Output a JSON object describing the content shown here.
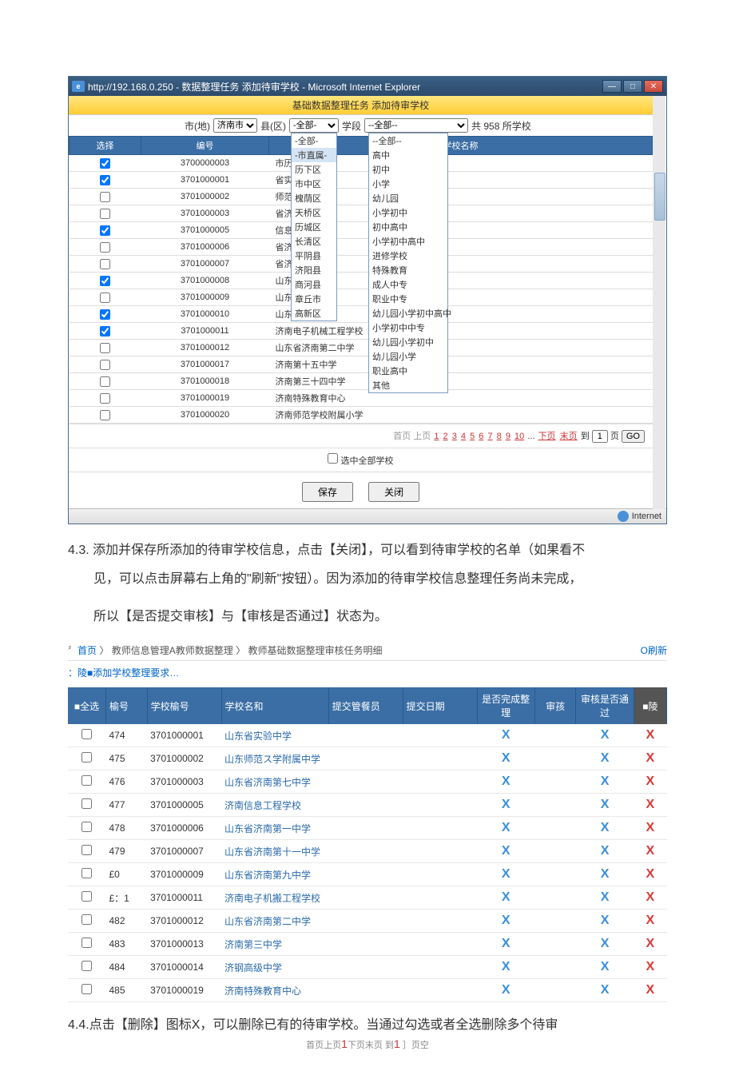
{
  "dialog": {
    "title": "http://192.168.0.250 - 数据整理任务 添加待审学校 - Microsoft Internet Explorer",
    "header": "基础数据整理任务 添加待审学校",
    "filter": {
      "city_label": "市(地)",
      "city_value": "济南市",
      "district_label": "县(区)",
      "district_value": "-全部-",
      "stage_label": "学段",
      "stage_value": "--全部--",
      "count_label": "共 958 所学校"
    },
    "district_options": [
      "-全部-",
      "-市直属-",
      "历下区",
      "市中区",
      "槐荫区",
      "天桥区",
      "历城区",
      "长清区",
      "平阴县",
      "济阳县",
      "商河县",
      "章丘市",
      "高新区"
    ],
    "stage_options": [
      "--全部--",
      "高中",
      "初中",
      "小学",
      "幼儿园",
      "小学初中",
      "初中高中",
      "小学初中高中",
      "进修学校",
      "特殊教育",
      "成人中专",
      "职业中专",
      "幼儿园小学初中高中",
      "小学初中中专",
      "幼儿园小学初中",
      "幼儿园小学",
      "职业高中",
      "其他"
    ],
    "columns": {
      "select": "选择",
      "id": "编号",
      "school": "学校名称"
    },
    "rows": [
      {
        "checked": true,
        "id": "3700000003",
        "prefix": "市历",
        "name": ""
      },
      {
        "checked": true,
        "id": "3701000001",
        "prefix": "省实引",
        "name": ""
      },
      {
        "checked": false,
        "id": "3701000002",
        "prefix": "师范引",
        "name": ""
      },
      {
        "checked": false,
        "id": "3701000003",
        "prefix": "省济引",
        "name": ""
      },
      {
        "checked": true,
        "id": "3701000005",
        "prefix": "信息",
        "name": ""
      },
      {
        "checked": false,
        "id": "3701000006",
        "prefix": "省济引",
        "name": ""
      },
      {
        "checked": false,
        "id": "3701000007",
        "prefix": "省济引",
        "name": ""
      },
      {
        "checked": true,
        "id": "3701000008",
        "prefix": "山东省济引",
        "name": ""
      },
      {
        "checked": false,
        "id": "3701000009",
        "prefix": "山东省济引",
        "name": ""
      },
      {
        "checked": true,
        "id": "3701000010",
        "prefix": "山东省济引",
        "name": ""
      },
      {
        "checked": true,
        "id": "3701000011",
        "prefix": "",
        "name": "济南电子机械工程学校"
      },
      {
        "checked": false,
        "id": "3701000012",
        "prefix": "",
        "name": "山东省济南第二中学"
      },
      {
        "checked": false,
        "id": "3701000017",
        "prefix": "",
        "name": "济南第十五中学"
      },
      {
        "checked": false,
        "id": "3701000018",
        "prefix": "",
        "name": "济南第三十四中学"
      },
      {
        "checked": false,
        "id": "3701000019",
        "prefix": "",
        "name": "济南特殊教育中心"
      },
      {
        "checked": false,
        "id": "3701000020",
        "prefix": "",
        "name": "济南师范学校附属小学"
      }
    ],
    "pager": {
      "first": "首页",
      "prev": "上页",
      "pages": [
        "1",
        "2",
        "3",
        "4",
        "5",
        "6",
        "7",
        "8",
        "9",
        "10"
      ],
      "more": "...",
      "next": "下页",
      "last": "末页",
      "to": "到",
      "input": "1",
      "page_suffix": "页",
      "go": "GO"
    },
    "check_all": "选中全部学校",
    "save": "保存",
    "close": "关闭",
    "zone": "Internet"
  },
  "p1": "4.3.  添加并保存所添加的待审学校信息，点击【关闭】，可以看到待审学校的名单（如果看不",
  "p2": "见，可以点击屏幕右上角的\"刷新\"按钮）。因为添加的待审学校信息整理任务尚未完成，",
  "p3": "所以【是否提交审核】与【审核是否通过】状态为。",
  "breadcrumb": {
    "home": "首页",
    "sep": " 〉",
    "l1": "教师信息管理A教师数据整理",
    "l2": "教师基础数据整理审核任务明细",
    "refresh": "O刷新"
  },
  "add_link": "：陵■添加学校整理要求…",
  "list": {
    "headers": {
      "all": "■全选",
      "no": "榆号",
      "school_no": "学校榆号",
      "school_name": "学校名和",
      "submitter": "提交管餐员",
      "submit_date": "提交日期",
      "done": "是否完成整理",
      "review": "审孩",
      "passed": "审核是否通过",
      "del": "■陵"
    },
    "rows": [
      {
        "no": "474",
        "sid": "3701000001",
        "name": "山东省实验中学"
      },
      {
        "no": "475",
        "sid": "3701000002",
        "name": "山东师范ス学附属中学"
      },
      {
        "no": "476",
        "sid": "3701000003",
        "name": "山东省济南第七中学"
      },
      {
        "no": "477",
        "sid": "3701000005",
        "name": "济南信息工程学校"
      },
      {
        "no": "478",
        "sid": "3701000006",
        "name": "山东省济南第一中学"
      },
      {
        "no": "479",
        "sid": "3701000007",
        "name": "山东省济南第十一中学"
      },
      {
        "no": "£0",
        "sid": "3701000009",
        "name": "山东省济南第九中学"
      },
      {
        "no": "£：1",
        "sid": "3701000011",
        "name": "济南电子机搬工程学校"
      },
      {
        "no": "482",
        "sid": "3701000012",
        "name": "山东省济南第二中学"
      },
      {
        "no": "483",
        "sid": "3701000013",
        "name": "济南第三中学"
      },
      {
        "no": "484",
        "sid": "3701000014",
        "name": "济钢高级中学"
      },
      {
        "no": "485",
        "sid": "3701000019",
        "name": "济南特殊教育中心"
      }
    ]
  },
  "p4": "4.4.点击【删除】图标X，可以删除已有的待审学校。当通过勾选或者全选删除多个待审",
  "mini_pager": {
    "text1": "首页上页",
    "n1": "1",
    "text2": "下页末页 到",
    "n2": "1",
    "text3": " ］页空"
  }
}
